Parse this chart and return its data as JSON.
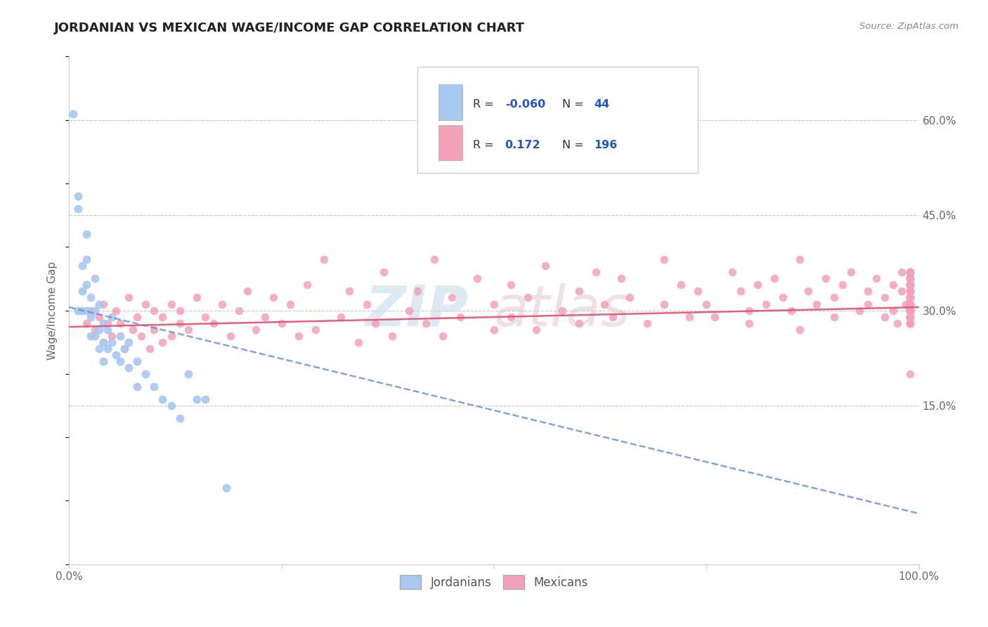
{
  "title": "JORDANIAN VS MEXICAN WAGE/INCOME GAP CORRELATION CHART",
  "source": "Source: ZipAtlas.com",
  "ylabel": "Wage/Income Gap",
  "x_min": 0.0,
  "x_max": 1.0,
  "y_min": -0.1,
  "y_max": 0.7,
  "right_yticks": [
    0.15,
    0.3,
    0.45,
    0.6
  ],
  "right_yticklabels": [
    "15.0%",
    "30.0%",
    "45.0%",
    "60.0%"
  ],
  "jordanian_color": "#a8c8f0",
  "mexican_color": "#f4a0b8",
  "jordanian_R": -0.06,
  "jordanian_N": 44,
  "mexican_R": 0.172,
  "mexican_N": 196,
  "trend_jordan_color": "#6090d0",
  "trend_mexico_color": "#e05070",
  "watermark_text": "ZIP",
  "watermark_text2": "atlas",
  "background_color": "#ffffff",
  "grid_color": "#c8c8c8",
  "legend_R1": "R = -0.060",
  "legend_N1": "N =  44",
  "legend_R2": "R =   0.172",
  "legend_N2": "N = 196",
  "jord_x": [
    0.005,
    0.01,
    0.01,
    0.01,
    0.015,
    0.015,
    0.015,
    0.02,
    0.02,
    0.02,
    0.02,
    0.025,
    0.025,
    0.025,
    0.03,
    0.03,
    0.03,
    0.035,
    0.035,
    0.035,
    0.04,
    0.04,
    0.04,
    0.045,
    0.045,
    0.05,
    0.05,
    0.055,
    0.06,
    0.06,
    0.065,
    0.07,
    0.07,
    0.08,
    0.08,
    0.09,
    0.1,
    0.11,
    0.12,
    0.13,
    0.14,
    0.15,
    0.16,
    0.185
  ],
  "jord_y": [
    0.61,
    0.48,
    0.46,
    0.3,
    0.37,
    0.33,
    0.3,
    0.42,
    0.38,
    0.34,
    0.3,
    0.32,
    0.29,
    0.26,
    0.35,
    0.3,
    0.26,
    0.31,
    0.27,
    0.24,
    0.28,
    0.25,
    0.22,
    0.27,
    0.24,
    0.29,
    0.25,
    0.23,
    0.26,
    0.22,
    0.24,
    0.25,
    0.21,
    0.22,
    0.18,
    0.2,
    0.18,
    0.16,
    0.15,
    0.13,
    0.2,
    0.16,
    0.16,
    0.02
  ],
  "mex_x": [
    0.02,
    0.025,
    0.03,
    0.035,
    0.04,
    0.04,
    0.045,
    0.05,
    0.055,
    0.06,
    0.065,
    0.07,
    0.075,
    0.08,
    0.085,
    0.09,
    0.095,
    0.1,
    0.1,
    0.11,
    0.11,
    0.12,
    0.12,
    0.13,
    0.13,
    0.14,
    0.15,
    0.16,
    0.17,
    0.18,
    0.19,
    0.2,
    0.21,
    0.22,
    0.23,
    0.24,
    0.25,
    0.26,
    0.27,
    0.28,
    0.29,
    0.3,
    0.32,
    0.33,
    0.34,
    0.35,
    0.36,
    0.37,
    0.38,
    0.4,
    0.41,
    0.42,
    0.43,
    0.44,
    0.45,
    0.46,
    0.48,
    0.5,
    0.5,
    0.52,
    0.52,
    0.54,
    0.55,
    0.56,
    0.58,
    0.6,
    0.6,
    0.62,
    0.63,
    0.64,
    0.65,
    0.66,
    0.68,
    0.7,
    0.7,
    0.72,
    0.73,
    0.74,
    0.75,
    0.76,
    0.78,
    0.79,
    0.8,
    0.8,
    0.81,
    0.82,
    0.83,
    0.84,
    0.85,
    0.86,
    0.86,
    0.87,
    0.88,
    0.89,
    0.9,
    0.9,
    0.91,
    0.92,
    0.93,
    0.94,
    0.94,
    0.95,
    0.96,
    0.96,
    0.97,
    0.97,
    0.975,
    0.98,
    0.98,
    0.985,
    0.99,
    0.99,
    0.99,
    0.99,
    0.99,
    0.99,
    0.99,
    0.99,
    0.99,
    0.99,
    0.99,
    0.99,
    0.99,
    0.99,
    0.99,
    0.99,
    0.99,
    0.99,
    0.99,
    0.99,
    0.99,
    0.99,
    0.99,
    0.99,
    0.99,
    0.99,
    0.99,
    0.99,
    0.99,
    0.99,
    0.99,
    0.99,
    0.99,
    0.99,
    0.99,
    0.99,
    0.99,
    0.99,
    0.99,
    0.99,
    0.99,
    0.99,
    0.99,
    0.99,
    0.99,
    0.99,
    0.99,
    0.99,
    0.99,
    0.99,
    0.99,
    0.99,
    0.99,
    0.99,
    0.99,
    0.99,
    0.99,
    0.99,
    0.99,
    0.99,
    0.99,
    0.99,
    0.99,
    0.99,
    0.99,
    0.99,
    0.99,
    0.99,
    0.99,
    0.99,
    0.99,
    0.99,
    0.99,
    0.99,
    0.99,
    0.99,
    0.99,
    0.99,
    0.99,
    0.99,
    0.99,
    0.99
  ],
  "mex_y": [
    0.28,
    0.3,
    0.27,
    0.29,
    0.31,
    0.25,
    0.28,
    0.26,
    0.3,
    0.28,
    0.24,
    0.32,
    0.27,
    0.29,
    0.26,
    0.31,
    0.24,
    0.3,
    0.27,
    0.29,
    0.25,
    0.31,
    0.26,
    0.3,
    0.28,
    0.27,
    0.32,
    0.29,
    0.28,
    0.31,
    0.26,
    0.3,
    0.33,
    0.27,
    0.29,
    0.32,
    0.28,
    0.31,
    0.26,
    0.34,
    0.27,
    0.38,
    0.29,
    0.33,
    0.25,
    0.31,
    0.28,
    0.36,
    0.26,
    0.3,
    0.33,
    0.28,
    0.38,
    0.26,
    0.32,
    0.29,
    0.35,
    0.31,
    0.27,
    0.34,
    0.29,
    0.32,
    0.27,
    0.37,
    0.3,
    0.33,
    0.28,
    0.36,
    0.31,
    0.29,
    0.35,
    0.32,
    0.28,
    0.38,
    0.31,
    0.34,
    0.29,
    0.33,
    0.31,
    0.29,
    0.36,
    0.33,
    0.3,
    0.28,
    0.34,
    0.31,
    0.35,
    0.32,
    0.3,
    0.38,
    0.27,
    0.33,
    0.31,
    0.35,
    0.32,
    0.29,
    0.34,
    0.36,
    0.3,
    0.33,
    0.31,
    0.35,
    0.29,
    0.32,
    0.34,
    0.3,
    0.28,
    0.36,
    0.33,
    0.31,
    0.29,
    0.34,
    0.36,
    0.31,
    0.3,
    0.33,
    0.35,
    0.32,
    0.3,
    0.28,
    0.36,
    0.33,
    0.3,
    0.32,
    0.35,
    0.33,
    0.31,
    0.29,
    0.34,
    0.31,
    0.33,
    0.35,
    0.3,
    0.32,
    0.34,
    0.36,
    0.29,
    0.31,
    0.33,
    0.3,
    0.35,
    0.32,
    0.3,
    0.28,
    0.33,
    0.36,
    0.31,
    0.34,
    0.3,
    0.32,
    0.35,
    0.33,
    0.31,
    0.29,
    0.34,
    0.31,
    0.33,
    0.35,
    0.3,
    0.32,
    0.34,
    0.36,
    0.29,
    0.31,
    0.33,
    0.3,
    0.35,
    0.32,
    0.3,
    0.28,
    0.33,
    0.36,
    0.2,
    0.32,
    0.34,
    0.36,
    0.29,
    0.31,
    0.33,
    0.3,
    0.35,
    0.32,
    0.3,
    0.28,
    0.33,
    0.36,
    0.31,
    0.34,
    0.3,
    0.32
  ],
  "jord_trend_x0": 0.0,
  "jord_trend_y0": 0.305,
  "jord_trend_x1": 1.0,
  "jord_trend_y1": -0.02,
  "mex_trend_x0": 0.0,
  "mex_trend_y0": 0.274,
  "mex_trend_x1": 1.0,
  "mex_trend_y1": 0.305
}
